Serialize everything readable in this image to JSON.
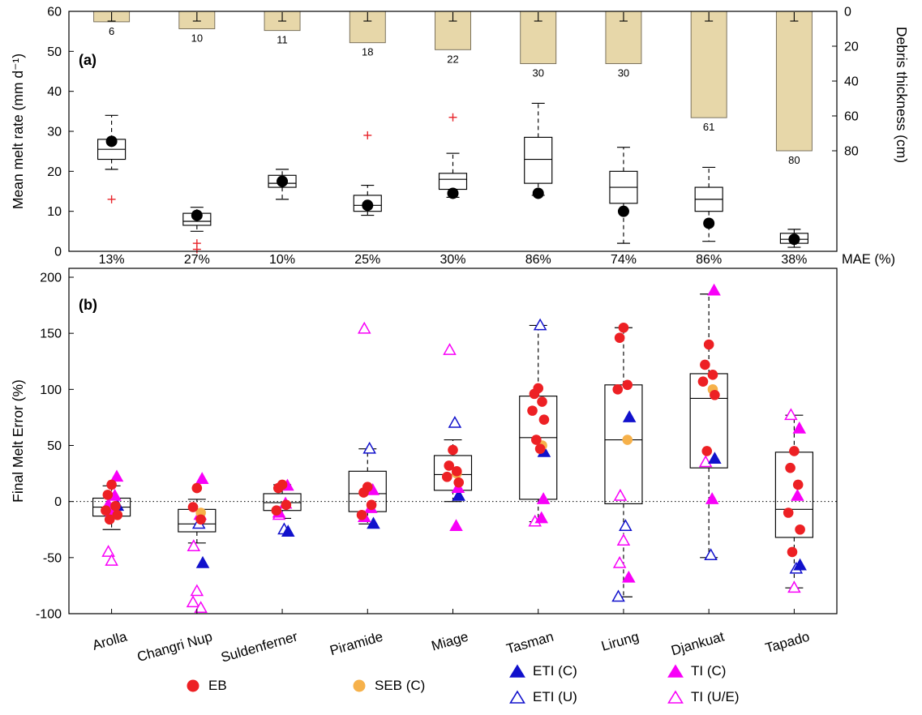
{
  "figure": {
    "panel_a_label": "(a)",
    "panel_b_label": "(b)",
    "mae_axis_label": "MAE (%)",
    "y_axis_a_left": "Mean melt rate (mm d⁻¹)",
    "y_axis_a_right": "Debris thickness (cm)",
    "y_axis_b_left": "Final Melt Error (%)"
  },
  "colors": {
    "bar": "#e7d7a9",
    "bar_edge": "#6f6652",
    "outlier": "#e8252b",
    "eb": "#ed2024",
    "seb": "#f6b14a",
    "eti": "#1111cc",
    "ti": "#f800f8"
  },
  "legend": [
    {
      "label": "EB",
      "marker": "circle",
      "fill": "#ed2024",
      "stroke": "#ed2024"
    },
    {
      "label": "SEB (C)",
      "marker": "circle",
      "fill": "#f6b14a",
      "stroke": "#f6b14a"
    },
    {
      "label": "ETI (C)",
      "marker": "triangle",
      "fill": "#1111cc",
      "stroke": "#1111cc"
    },
    {
      "label": "ETI (U)",
      "marker": "triangle",
      "fill": "#ffffff",
      "stroke": "#1111cc"
    },
    {
      "label": "TI (C)",
      "marker": "triangle",
      "fill": "#f800f8",
      "stroke": "#f800f8"
    },
    {
      "label": "TI (U/E)",
      "marker": "triangle",
      "fill": "#ffffff",
      "stroke": "#f800f8"
    }
  ],
  "chart_data": [
    {
      "id": "panel_a",
      "type": "bar",
      "subtype": "boxplot-with-hanging-bars",
      "title": "",
      "categories": [
        "Arolla",
        "Changri Nup",
        "Suldenferner",
        "Piramide",
        "Miage",
        "Tasman",
        "Lirung",
        "Djankuat",
        "Tapado"
      ],
      "ylabel_left": "Mean melt rate (mm d⁻¹)",
      "ylim_left": [
        0,
        60
      ],
      "yticks_left": [
        0,
        10,
        20,
        30,
        40,
        50,
        60
      ],
      "ylabel_right": "Debris thickness (cm)",
      "ylim_right": [
        0,
        80
      ],
      "yticks_right": [
        0,
        20,
        40,
        60,
        80
      ],
      "debris_thickness_cm": [
        6,
        10,
        11,
        18,
        22,
        30,
        30,
        61,
        80
      ],
      "boxes": [
        {
          "wlo": 20.5,
          "q1": 23,
          "med": 25.5,
          "q3": 28,
          "whi": 34,
          "mean": 27.5,
          "outliers": [
            13
          ]
        },
        {
          "wlo": 5,
          "q1": 6.5,
          "med": 7.5,
          "q3": 9.5,
          "whi": 11,
          "mean": 9,
          "outliers": [
            2,
            0.5
          ]
        },
        {
          "wlo": 13,
          "q1": 16,
          "med": 17,
          "q3": 19,
          "whi": 20.5,
          "mean": 17.5,
          "outliers": []
        },
        {
          "wlo": 9,
          "q1": 10,
          "med": 11.5,
          "q3": 14,
          "whi": 16.5,
          "mean": 11.5,
          "outliers": [
            29
          ]
        },
        {
          "wlo": 13.5,
          "q1": 15.5,
          "med": 18,
          "q3": 19.5,
          "whi": 24.5,
          "mean": 14.5,
          "outliers": [
            33.5
          ]
        },
        {
          "wlo": 14,
          "q1": 17,
          "med": 23,
          "q3": 28.5,
          "whi": 37,
          "mean": 14.5,
          "outliers": []
        },
        {
          "wlo": 2,
          "q1": 12,
          "med": 16,
          "q3": 20,
          "whi": 26,
          "mean": 10,
          "outliers": []
        },
        {
          "wlo": 2.5,
          "q1": 10,
          "med": 13,
          "q3": 16,
          "whi": 21,
          "mean": 7,
          "outliers": []
        },
        {
          "wlo": 1,
          "q1": 2,
          "med": 3,
          "q3": 4.5,
          "whi": 5.5,
          "mean": 3,
          "outliers": []
        }
      ]
    },
    {
      "id": "panel_b",
      "type": "scatter",
      "subtype": "boxplot-with-model-points",
      "title": "",
      "categories": [
        "Arolla",
        "Changri Nup",
        "Suldenferner",
        "Piramide",
        "Miage",
        "Tasman",
        "Lirung",
        "Djankuat",
        "Tapado"
      ],
      "ylabel": "Final Melt Error (%)",
      "ylim": [
        -100,
        210
      ],
      "yticks": [
        -100,
        -50,
        0,
        50,
        100,
        150,
        200
      ],
      "zero_reference_line": 0,
      "mae_percent": [
        "13%",
        "27%",
        "10%",
        "25%",
        "30%",
        "86%",
        "74%",
        "86%",
        "38%"
      ],
      "boxes": [
        {
          "wlo": -25,
          "q1": -13,
          "med": -5,
          "q3": 3,
          "whi": 14
        },
        {
          "wlo": -37,
          "q1": -27,
          "med": -20,
          "q3": -7,
          "whi": 2
        },
        {
          "wlo": -15,
          "q1": -8,
          "med": -1,
          "q3": 7,
          "whi": 15
        },
        {
          "wlo": -20,
          "q1": -9,
          "med": 7,
          "q3": 27,
          "whi": 47
        },
        {
          "wlo": 0,
          "q1": 10,
          "med": 24,
          "q3": 41,
          "whi": 55
        },
        {
          "wlo": -18,
          "q1": 2,
          "med": 57,
          "q3": 94,
          "whi": 157
        },
        {
          "wlo": -85,
          "q1": -2,
          "med": 55,
          "q3": 104,
          "whi": 155
        },
        {
          "wlo": -50,
          "q1": 30,
          "med": 92,
          "q3": 114,
          "whi": 185
        },
        {
          "wlo": -77,
          "q1": -32,
          "med": -7,
          "q3": 44,
          "whi": 77
        }
      ],
      "series": [
        {
          "name": "EB",
          "marker": "circle",
          "filled": true,
          "color": "#ed2024",
          "values_by_site": [
            [
              15,
              6,
              -4,
              -8,
              -12,
              -16
            ],
            [
              12,
              -5,
              -16
            ],
            [
              15,
              12,
              -3,
              -8
            ],
            [
              13,
              8,
              -3,
              -12
            ],
            [
              46,
              32,
              27,
              22,
              17
            ],
            [
              101,
              96,
              89,
              81,
              73,
              55,
              47
            ],
            [
              155,
              146,
              104,
              100
            ],
            [
              140,
              122,
              113,
              107,
              95,
              45
            ],
            [
              45,
              30,
              15,
              -10,
              -25,
              -45
            ]
          ]
        },
        {
          "name": "SEB (C)",
          "marker": "circle",
          "filled": true,
          "color": "#f6b14a",
          "values_by_site": [
            [],
            [
              -10
            ],
            [],
            [],
            [
              25
            ],
            [
              50
            ],
            [
              55
            ],
            [
              100
            ],
            []
          ]
        },
        {
          "name": "ETI (C)",
          "marker": "triangle",
          "filled": true,
          "color": "#1111cc",
          "values_by_site": [
            [
              -4
            ],
            [
              -55
            ],
            [
              -27
            ],
            [
              -20
            ],
            [
              5
            ],
            [
              44
            ],
            [
              75
            ],
            [
              38
            ],
            [
              -57
            ]
          ]
        },
        {
          "name": "ETI (U)",
          "marker": "triangle",
          "filled": false,
          "color": "#1111cc",
          "values_by_site": [
            [
              2
            ],
            [
              -20
            ],
            [
              -25
            ],
            [
              47
            ],
            [
              70
            ],
            [
              157
            ],
            [
              -22,
              -85
            ],
            [
              -48
            ],
            [
              -60
            ]
          ]
        },
        {
          "name": "TI (C)",
          "marker": "triangle",
          "filled": true,
          "color": "#f800f8",
          "values_by_site": [
            [
              22,
              5,
              -3,
              -9
            ],
            [
              20,
              -12
            ],
            [
              14,
              -2,
              -10
            ],
            [
              10,
              -6,
              -14
            ],
            [
              12,
              -22
            ],
            [
              2,
              -15
            ],
            [
              -68
            ],
            [
              188,
              2
            ],
            [
              65,
              5
            ]
          ]
        },
        {
          "name": "TI (U/E)",
          "marker": "triangle",
          "filled": false,
          "color": "#f800f8",
          "values_by_site": [
            [
              -45,
              -53
            ],
            [
              -40,
              -80,
              -90,
              -95
            ],
            [
              -12
            ],
            [
              154
            ],
            [
              135
            ],
            [
              -18
            ],
            [
              5,
              -35,
              -55
            ],
            [
              35
            ],
            [
              77,
              -77
            ]
          ]
        }
      ]
    }
  ]
}
